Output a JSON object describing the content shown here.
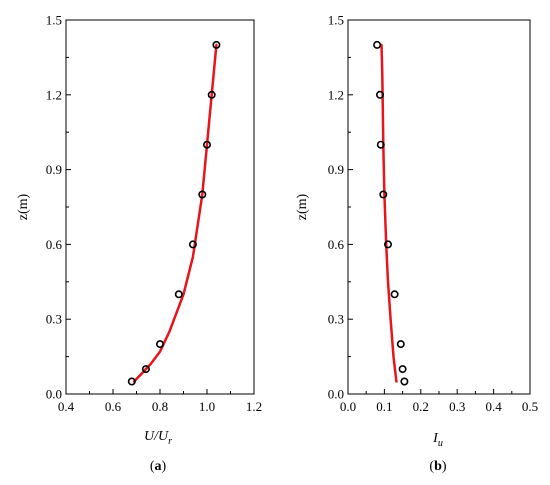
{
  "colors": {
    "line": "#e8141b",
    "marker": "#000000",
    "axis": "#000000"
  },
  "chart_data": [
    {
      "type": "scatter",
      "panel_label": {
        "open": "(",
        "letter": "a",
        "close": ")"
      },
      "xlabel": {
        "main": "U/U",
        "sub": "r"
      },
      "ylabel": "z(m)",
      "xlim": [
        0.4,
        1.2
      ],
      "ylim": [
        0,
        1.5
      ],
      "xticks": [
        "0.4",
        "0.6",
        "0.8",
        "1.0",
        "1.2"
      ],
      "yticks": [
        "0.0",
        "0.3",
        "0.6",
        "0.9",
        "1.2",
        "1.5"
      ],
      "grid": false,
      "series": [
        {
          "kind": "points",
          "x": [
            0.68,
            0.74,
            0.8,
            0.88,
            0.94,
            0.98,
            1.0,
            1.02,
            1.04
          ],
          "y": [
            0.05,
            0.1,
            0.2,
            0.4,
            0.6,
            0.8,
            1.0,
            1.2,
            1.4
          ]
        },
        {
          "kind": "line",
          "x": [
            0.69,
            0.72,
            0.76,
            0.8,
            0.84,
            0.9,
            0.94,
            0.98,
            1.0,
            1.02,
            1.04
          ],
          "y": [
            0.05,
            0.08,
            0.12,
            0.17,
            0.25,
            0.4,
            0.55,
            0.8,
            1.0,
            1.2,
            1.4
          ]
        }
      ]
    },
    {
      "type": "scatter",
      "panel_label": {
        "open": "(",
        "letter": "b",
        "close": ")"
      },
      "xlabel": {
        "main": "I",
        "sub": "u"
      },
      "ylabel": "z(m)",
      "xlim": [
        0,
        0.5
      ],
      "ylim": [
        0,
        1.5
      ],
      "xticks": [
        "0.0",
        "0.1",
        "0.2",
        "0.3",
        "0.4",
        "0.5"
      ],
      "yticks": [
        "0.0",
        "0.3",
        "0.6",
        "0.9",
        "1.2",
        "1.5"
      ],
      "grid": false,
      "series": [
        {
          "kind": "points",
          "x": [
            0.155,
            0.15,
            0.145,
            0.128,
            0.11,
            0.097,
            0.09,
            0.088,
            0.08
          ],
          "y": [
            0.05,
            0.1,
            0.2,
            0.4,
            0.6,
            0.8,
            1.0,
            1.2,
            1.4
          ]
        },
        {
          "kind": "line",
          "x": [
            0.133,
            0.125,
            0.117,
            0.11,
            0.105,
            0.1,
            0.097,
            0.095,
            0.094,
            0.092
          ],
          "y": [
            0.05,
            0.15,
            0.3,
            0.45,
            0.6,
            0.8,
            1.0,
            1.2,
            1.3,
            1.4
          ]
        }
      ]
    }
  ]
}
